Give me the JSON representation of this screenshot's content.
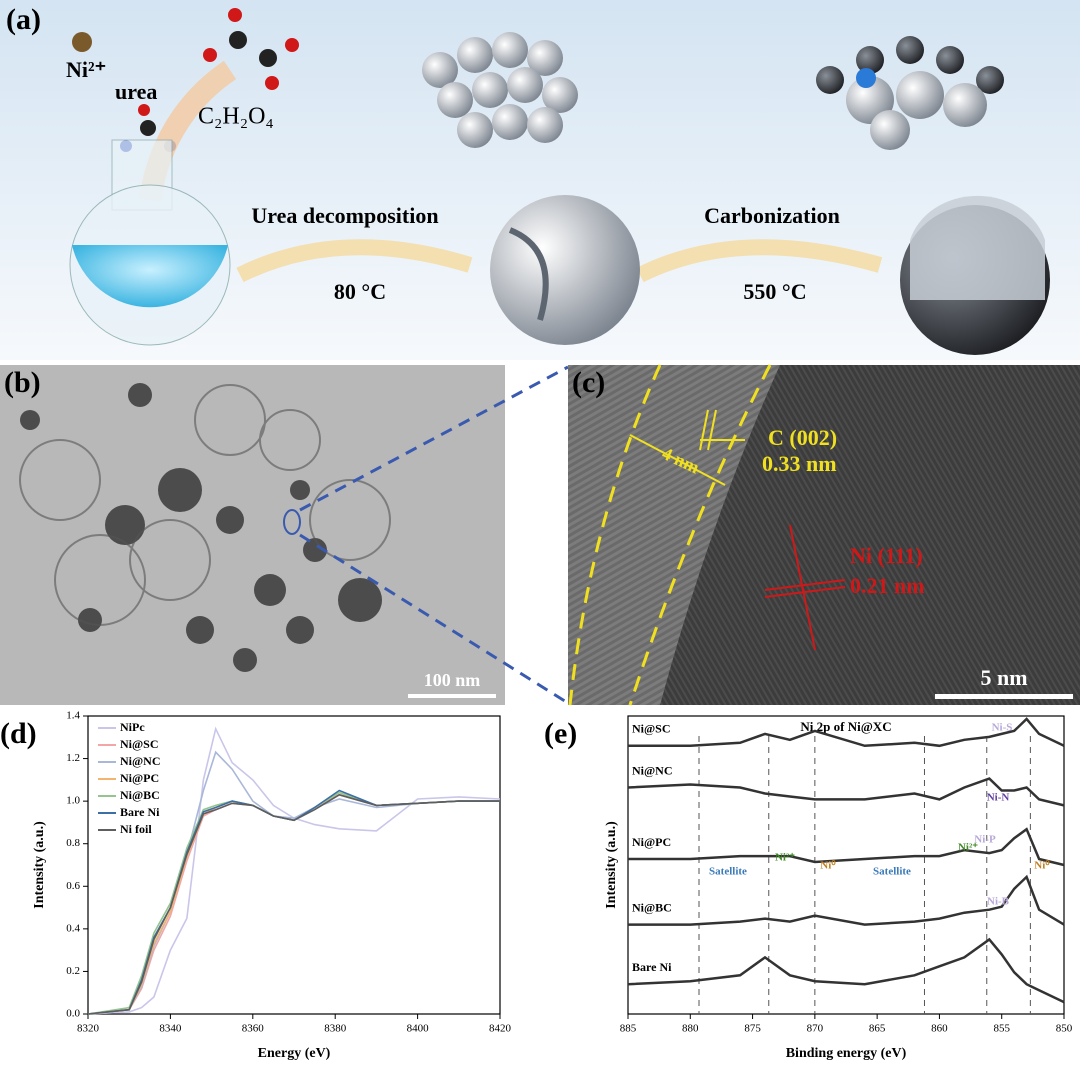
{
  "figure_a": {
    "label": "(a)",
    "ni_ion": "Ni²⁺",
    "urea": "urea",
    "oxalic_acid": "C₂H₂O₄",
    "step1": "Urea decomposition",
    "temp1": "80 °C",
    "step2": "Carbonization",
    "temp2": "550 °C"
  },
  "figure_b": {
    "label": "(b)",
    "scale_bar": "100 nm"
  },
  "figure_c": {
    "label": "(c)",
    "carbon_plane": "C (002)",
    "carbon_spacing": "0.33 nm",
    "shell_thickness": "4 nm",
    "nickel_plane": "Ni (111)",
    "nickel_spacing": "0.21 nm",
    "scale_bar": "5 nm"
  },
  "chart_data": [
    {
      "type": "line",
      "label": "(d)",
      "x_label": "Energy (eV)",
      "y_label": "Intensity (a.u.)",
      "x": [
        8320,
        8330,
        8333,
        8336,
        8340,
        8344,
        8348,
        8351,
        8355,
        8360,
        8365,
        8370,
        8375,
        8381,
        8390,
        8400,
        8410,
        8420
      ],
      "xlim": [
        8320,
        8420
      ],
      "ylim": [
        0,
        1.4
      ],
      "xticks": [
        8320,
        8340,
        8360,
        8380,
        8400,
        8420
      ],
      "yticks": [
        {
          "value": 0,
          "label": "0.0"
        },
        0.2,
        0.4,
        0.6,
        0.8,
        {
          "value": 1,
          "label": "1.0"
        },
        1.2,
        1.4
      ],
      "legend": "upper left",
      "series": [
        {
          "name": "NiPc",
          "color": "#c9c6ea",
          "values": [
            0,
            0.01,
            0.03,
            0.08,
            0.3,
            0.45,
            1.1,
            1.34,
            1.18,
            1.1,
            0.98,
            0.92,
            0.89,
            0.87,
            0.86,
            1.01,
            1.02,
            1.01
          ]
        },
        {
          "name": "Ni@SC",
          "color": "#f2a6a6",
          "values": [
            0,
            0.02,
            0.12,
            0.3,
            0.46,
            0.72,
            0.93,
            0.96,
            0.99,
            0.98,
            0.93,
            0.91,
            0.97,
            1.03,
            0.98,
            0.99,
            1.0,
            1.0
          ]
        },
        {
          "name": "Ni@NC",
          "color": "#a9b7d9",
          "values": [
            0,
            0.02,
            0.13,
            0.32,
            0.48,
            0.75,
            1.05,
            1.23,
            1.15,
            1.0,
            0.93,
            0.92,
            0.97,
            1.01,
            0.97,
            0.99,
            1.0,
            1.0
          ]
        },
        {
          "name": "Ni@PC",
          "color": "#f2b46e",
          "values": [
            0,
            0.02,
            0.14,
            0.33,
            0.48,
            0.74,
            0.94,
            0.97,
            1.0,
            0.98,
            0.93,
            0.91,
            0.97,
            1.04,
            0.98,
            0.99,
            1.0,
            1.0
          ]
        },
        {
          "name": "Ni@BC",
          "color": "#95c490",
          "values": [
            0,
            0.03,
            0.18,
            0.38,
            0.52,
            0.78,
            0.96,
            0.98,
            1.0,
            0.98,
            0.93,
            0.91,
            0.97,
            1.04,
            0.98,
            0.99,
            1.0,
            1.0
          ]
        },
        {
          "name": "Bare Ni",
          "color": "#3b6fa6",
          "values": [
            0,
            0.02,
            0.16,
            0.36,
            0.5,
            0.76,
            0.95,
            0.97,
            1.0,
            0.98,
            0.93,
            0.91,
            0.97,
            1.05,
            0.98,
            0.99,
            1.0,
            1.0
          ]
        },
        {
          "name": "Ni foil",
          "color": "#5e5e5e",
          "values": [
            0,
            0.02,
            0.15,
            0.35,
            0.5,
            0.75,
            0.94,
            0.96,
            0.99,
            0.98,
            0.93,
            0.91,
            0.96,
            1.03,
            0.98,
            0.99,
            1.0,
            1.0
          ]
        }
      ]
    },
    {
      "type": "line",
      "label": "(e)",
      "title": "Ni 2p of Ni@XC",
      "x_label": "Binding energy (eV)",
      "y_label": "Intensity (a.u.)",
      "x": [
        885,
        880,
        876,
        874,
        872,
        870,
        866,
        862,
        860,
        858,
        856,
        855,
        854,
        853,
        852,
        850
      ],
      "xlim": [
        885,
        850
      ],
      "ylim": [
        0,
        10
      ],
      "xticks": [
        885,
        880,
        875,
        870,
        865,
        860,
        855,
        850
      ],
      "reference_lines": [
        879.3,
        873.7,
        870,
        861.2,
        856.2,
        852.7
      ],
      "annotations": [
        "Satellite",
        "Ni²⁺",
        "Ni⁰",
        "Satellite",
        "Ni²⁺",
        "Ni⁰",
        "Ni-S",
        "Ni-N",
        "Ni-P",
        "Ni-B"
      ],
      "series": [
        {
          "name": "Ni@SC",
          "color": "#333333",
          "values": [
            9.0,
            9.0,
            9.1,
            9.4,
            9.2,
            9.5,
            9.0,
            9.1,
            9.0,
            9.2,
            9.3,
            9.4,
            9.5,
            9.9,
            9.4,
            9.0
          ]
        },
        {
          "name": "Ni@NC",
          "color": "#333333",
          "values": [
            7.6,
            7.7,
            7.6,
            7.4,
            7.3,
            7.2,
            7.2,
            7.4,
            7.2,
            7.6,
            7.9,
            7.5,
            7.5,
            7.6,
            7.2,
            7.0
          ]
        },
        {
          "name": "Ni@PC",
          "color": "#333333",
          "values": [
            5.2,
            5.2,
            5.3,
            5.3,
            5.3,
            5.1,
            5.2,
            5.3,
            5.3,
            5.5,
            5.4,
            5.5,
            5.9,
            6.2,
            5.2,
            5.0
          ]
        },
        {
          "name": "Ni@BC",
          "color": "#333333",
          "values": [
            3.0,
            3.0,
            3.1,
            3.2,
            3.1,
            3.3,
            3.0,
            3.1,
            3.2,
            3.4,
            3.5,
            3.6,
            4.2,
            4.6,
            3.5,
            3.0
          ]
        },
        {
          "name": "Bare Ni",
          "color": "#333333",
          "values": [
            1.0,
            1.1,
            1.3,
            1.9,
            1.3,
            1.1,
            1.0,
            1.3,
            1.6,
            1.9,
            2.5,
            2.0,
            1.4,
            1.0,
            0.8,
            0.4
          ]
        }
      ]
    }
  ]
}
